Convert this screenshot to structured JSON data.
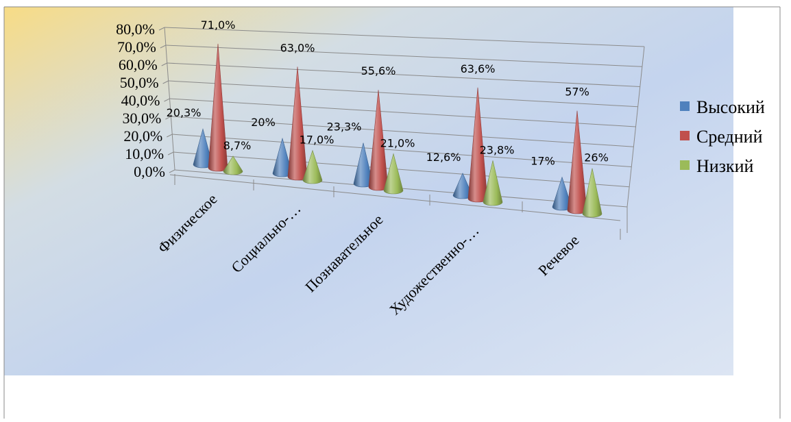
{
  "chart_data": {
    "type": "bar",
    "style": "3d-cone",
    "categories": [
      "Физическое",
      "Социально-…",
      "Познавательное",
      "Художественно-…",
      "Речевое"
    ],
    "series": [
      {
        "name": "Высокий",
        "color": "#4F81BD",
        "values": [
          20.3,
          20,
          23.3,
          12.6,
          17
        ],
        "labels": [
          "20,3%",
          "20%",
          "23,3%",
          "12,6%",
          "17%"
        ]
      },
      {
        "name": "Средний",
        "color": "#C0504D",
        "values": [
          71.0,
          63.0,
          55.6,
          63.6,
          57
        ],
        "labels": [
          "71,0%",
          "63,0%",
          "55,6%",
          "63,6%",
          "57%"
        ]
      },
      {
        "name": "Низкий",
        "color": "#9BBB59",
        "values": [
          8.7,
          17.0,
          21.0,
          23.8,
          26
        ],
        "labels": [
          "8,7%",
          "17,0%",
          "21,0%",
          "23,8%",
          "26%"
        ]
      }
    ],
    "y_ticks": [
      "0,0%",
      "10,0%",
      "20,0%",
      "30,0%",
      "40,0%",
      "50,0%",
      "60,0%",
      "70,0%",
      "80,0%"
    ],
    "ylim": [
      0,
      80
    ],
    "grid": true,
    "legend_position": "right"
  }
}
